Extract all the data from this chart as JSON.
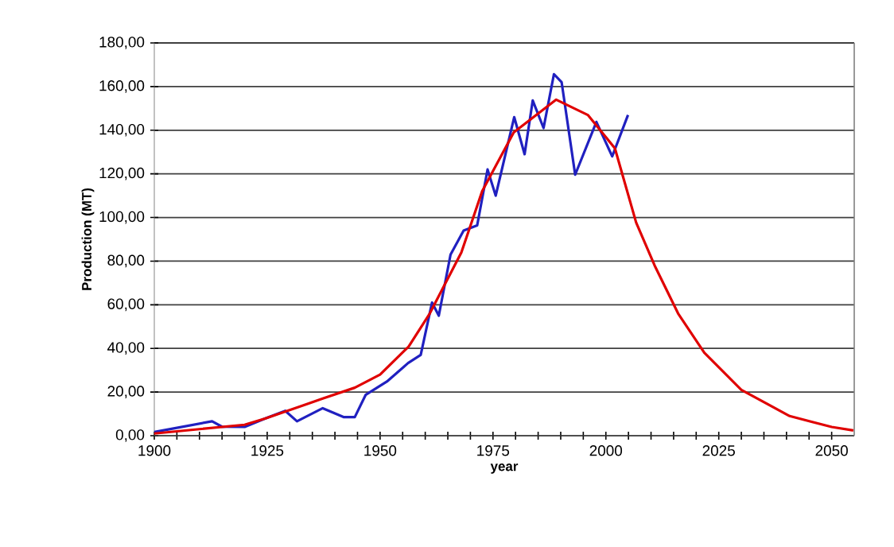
{
  "chart_data": {
    "type": "line",
    "xlabel": "year",
    "ylabel": "Production (MT)",
    "xlim": [
      1900,
      2055
    ],
    "ylim": [
      0,
      180
    ],
    "xticks": [
      1900,
      {
        "value": 1905,
        "label": null
      },
      {
        "value": 1910,
        "label": null
      },
      {
        "value": 1915,
        "label": null
      },
      {
        "value": 1920,
        "label": null
      },
      1925,
      {
        "value": 1930,
        "label": null
      },
      {
        "value": 1935,
        "label": null
      },
      {
        "value": 1940,
        "label": null
      },
      {
        "value": 1945,
        "label": null
      },
      1950,
      {
        "value": 1955,
        "label": null
      },
      {
        "value": 1960,
        "label": null
      },
      {
        "value": 1965,
        "label": null
      },
      {
        "value": 1970,
        "label": null
      },
      1975,
      {
        "value": 1980,
        "label": null
      },
      {
        "value": 1985,
        "label": null
      },
      {
        "value": 1990,
        "label": null
      },
      {
        "value": 1995,
        "label": null
      },
      2000,
      {
        "value": 2005,
        "label": null
      },
      {
        "value": 2010,
        "label": null
      },
      {
        "value": 2015,
        "label": null
      },
      {
        "value": 2020,
        "label": null
      },
      2025,
      {
        "value": 2030,
        "label": null
      },
      {
        "value": 2035,
        "label": null
      },
      {
        "value": 2040,
        "label": null
      },
      {
        "value": 2045,
        "label": null
      },
      2050
    ],
    "yticks": [
      {
        "value": 0,
        "label": "0,00"
      },
      {
        "value": 20,
        "label": "20,00"
      },
      {
        "value": 40,
        "label": "40,00"
      },
      {
        "value": 60,
        "label": "60,00"
      },
      {
        "value": 80,
        "label": "80,00"
      },
      {
        "value": 100,
        "label": "100,00"
      },
      {
        "value": 120,
        "label": "120,00"
      },
      {
        "value": 140,
        "label": "140,00"
      },
      {
        "value": 160,
        "label": "160,00"
      },
      {
        "value": 180,
        "label": "180,00"
      }
    ],
    "grid": "y",
    "marker": "none",
    "line_style": "solid",
    "series": [
      {
        "color": "#2020c0",
        "x": [
          1900,
          1912.8,
          1915,
          1920,
          1924.5,
          1929,
          1931.6,
          1937.3,
          1942,
          1944.4,
          1946.8,
          1951.5,
          1956.2,
          1959,
          1961.5,
          1963,
          1965.6,
          1968.5,
          1971.5,
          1973.8,
          1975.6,
          1979.7,
          1982,
          1983.8,
          1986.2,
          1988.5,
          1990.2,
          1993.2,
          1997.9,
          2001.4,
          2004.9
        ],
        "values": [
          1.7,
          6.6,
          4.1,
          4,
          7.8,
          11.4,
          6.6,
          12.6,
          8.5,
          8.5,
          18.7,
          24.8,
          33.3,
          37,
          61,
          55,
          83,
          94,
          96.4,
          122,
          110,
          146,
          129,
          153.6,
          141,
          165.7,
          162,
          119.6,
          143.8,
          128,
          147
        ]
      },
      {
        "color": "#e00000",
        "x": [
          1900,
          1910,
          1920,
          1924.5,
          1937.3,
          1944.4,
          1950,
          1956.3,
          1961,
          1968,
          1972.6,
          1979.6,
          1989,
          1996,
          2002,
          2006.7,
          2010.8,
          2016,
          2021.8,
          2030,
          2040.7,
          2050,
          2054.8
        ],
        "values": [
          1,
          3,
          5,
          7.8,
          17,
          22,
          28,
          40.8,
          56,
          84,
          112,
          139,
          154,
          147,
          131.7,
          97.7,
          78,
          56,
          38,
          21,
          9,
          4,
          2.4
        ]
      }
    ]
  }
}
